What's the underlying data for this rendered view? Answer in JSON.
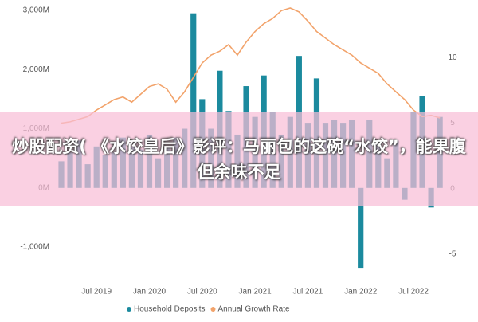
{
  "chart_data": {
    "type": "bar",
    "categories": [
      null,
      null,
      null,
      null,
      "Jul 2019",
      null,
      null,
      null,
      null,
      null,
      "Jan 2020",
      null,
      null,
      null,
      null,
      null,
      "Jul 2020",
      null,
      null,
      null,
      null,
      null,
      "Jan 2021",
      null,
      null,
      null,
      null,
      null,
      "Jul 2021",
      null,
      null,
      null,
      null,
      null,
      "Jan 2022",
      null,
      null,
      null,
      null,
      null,
      "Jul 2022",
      null,
      null,
      null
    ],
    "series": [
      {
        "name": "Household Deposits",
        "color": "#1b8a9e",
        "values": [
          450,
          600,
          800,
          400,
          700,
          550,
          600,
          850,
          700,
          650,
          900,
          500,
          700,
          850,
          1000,
          2950,
          1500,
          1000,
          1980,
          1300,
          900,
          1720,
          1200,
          1900,
          1280,
          900,
          1200,
          2230,
          1100,
          1850,
          1100,
          1150,
          1100,
          1150,
          -1350,
          1150,
          800,
          500,
          800,
          -200,
          1280,
          1550,
          -330,
          1200
        ]
      },
      {
        "name": "Annual Growth Rate",
        "color": "#f2a36b",
        "type": "line",
        "axis": "y2",
        "values": [
          5.0,
          5.1,
          5.3,
          5.5,
          6.0,
          6.4,
          6.8,
          7.0,
          6.6,
          7.2,
          7.8,
          8.0,
          7.6,
          6.6,
          7.4,
          8.5,
          9.6,
          10.2,
          10.5,
          11.0,
          10.2,
          11.2,
          12.0,
          12.6,
          13.0,
          13.6,
          13.8,
          13.5,
          12.8,
          12.0,
          11.5,
          11.0,
          10.6,
          10.2,
          9.6,
          9.2,
          8.8,
          8.0,
          7.4,
          6.8,
          6.0,
          5.5,
          5.6,
          5.4
        ]
      }
    ],
    "ylim": [
      -1470,
      3040
    ],
    "yticks": [
      {
        "value": -1000,
        "label": "-1,000M"
      },
      {
        "value": 0,
        "label": "0M"
      },
      {
        "value": 1000,
        "label": "1,000M"
      },
      {
        "value": 2000,
        "label": "2,000M"
      },
      {
        "value": 3000,
        "label": "3,000M"
      }
    ],
    "y2lim": [
      -6.6,
      13.8
    ],
    "y2ticks": [
      -5,
      0,
      5,
      10
    ],
    "grid": false,
    "legend": "bottom"
  },
  "banner": {
    "text": "炒股配资( 《水饺皇后》影评：马丽包的这碗“水饺”，能果腹但余味不足"
  }
}
